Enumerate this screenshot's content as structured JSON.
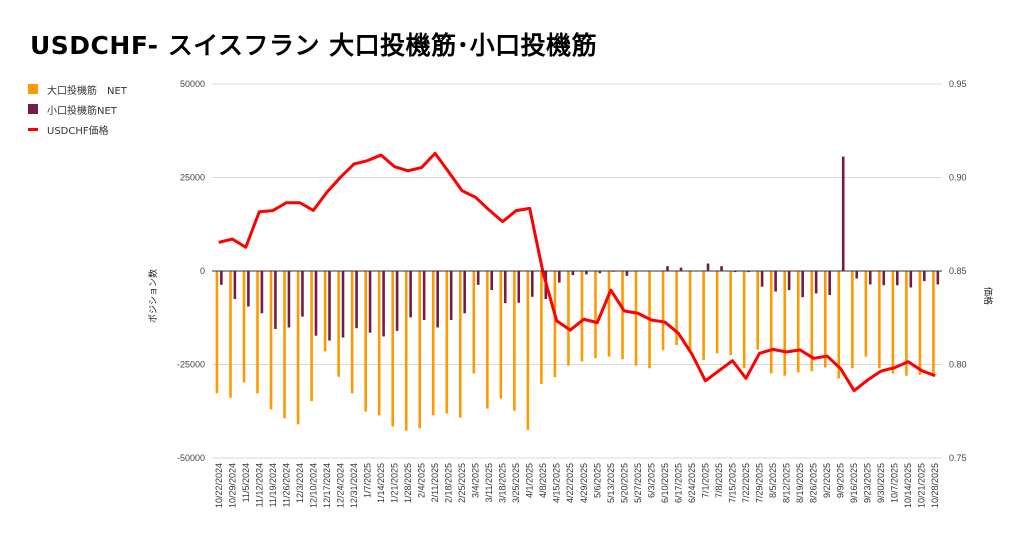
{
  "chart_data": {
    "type": "bar+line",
    "title": "USDCHF- スイスフラン 大口投機筋･小口投機筋",
    "ylabel": "ポジション数",
    "y2label": "価格",
    "ylim": [
      -50000,
      50000
    ],
    "yticks": [
      50000,
      25000,
      0,
      -25000,
      -50000
    ],
    "y2lim": [
      0.75,
      0.95
    ],
    "y2ticks": [
      "0.95",
      "0.90",
      "0.85",
      "0.80",
      "0.75"
    ],
    "grid": true,
    "legend_position": "top-left",
    "categories": [
      "10/22/2024",
      "10/29/2024",
      "11/5/2024",
      "11/12/2024",
      "11/19/2024",
      "11/26/2024",
      "12/3/2024",
      "12/10/2024",
      "12/17/2024",
      "12/24/2024",
      "12/31/2024",
      "1/7/2025",
      "1/14/2025",
      "1/21/2025",
      "1/28/2025",
      "2/4/2025",
      "2/11/2025",
      "2/18/2025",
      "2/25/2025",
      "3/4/2025",
      "3/11/2025",
      "3/18/2025",
      "3/25/2025",
      "4/1/2025",
      "4/8/2025",
      "4/15/2025",
      "4/22/2025",
      "4/29/2025",
      "5/6/2025",
      "5/13/2025",
      "5/20/2025",
      "5/27/2025",
      "6/3/2025",
      "6/10/2025",
      "6/17/2025",
      "6/24/2025",
      "7/1/2025",
      "7/8/2025",
      "7/15/2025",
      "7/22/2025",
      "7/29/2025",
      "8/5/2025",
      "8/12/2025",
      "8/19/2025",
      "8/26/2025",
      "9/2/2025",
      "9/9/2025",
      "9/16/2025",
      "9/23/2025",
      "9/30/2025",
      "10/7/2025",
      "10/14/2025",
      "10/21/2025",
      "10/28/2025"
    ],
    "series": [
      {
        "name": "大口投機筋　NET",
        "type": "bar",
        "axis": "left",
        "color": "#ff9900",
        "values": [
          -32700,
          -33900,
          -29800,
          -32700,
          -37000,
          -39400,
          -41000,
          -34800,
          -21500,
          -28300,
          -32700,
          -37600,
          -38600,
          -41600,
          -42700,
          -42100,
          -38600,
          -38100,
          -39200,
          -27400,
          -36800,
          -34100,
          -37400,
          -42500,
          -30200,
          -28400,
          -25300,
          -24200,
          -23300,
          -22900,
          -23600,
          -25300,
          -26000,
          -21200,
          -19800,
          -21900,
          -23800,
          -22000,
          -22500,
          -26000,
          -21000,
          -27400,
          -28000,
          -27100,
          -26800,
          -25800,
          -28700,
          -26000,
          -22900,
          -26000,
          -27400,
          -28000,
          -27800,
          -27600
        ]
      },
      {
        "name": "小口投機筋NET",
        "type": "bar",
        "axis": "left",
        "color": "#741b47",
        "values": [
          -3700,
          -7500,
          -9500,
          -11300,
          -15500,
          -15100,
          -12200,
          -17300,
          -18600,
          -17800,
          -15300,
          -16500,
          -17500,
          -16000,
          -12400,
          -13100,
          -15100,
          -13100,
          -11300,
          -3700,
          -5100,
          -8600,
          -8500,
          -6900,
          -7500,
          -3100,
          -1100,
          -900,
          -600,
          -200,
          -1300,
          0,
          0,
          1300,
          900,
          0,
          2000,
          1300,
          -300,
          -300,
          -4200,
          -5500,
          -5100,
          -7000,
          -6000,
          -6400,
          30600,
          -2000,
          -3600,
          -3800,
          -3800,
          -4400,
          -2700,
          -3600
        ]
      },
      {
        "name": "USDCHF価格",
        "type": "line",
        "axis": "right",
        "color": "#ff0000",
        "values": [
          0.8653,
          0.8671,
          0.8627,
          0.8817,
          0.8823,
          0.8865,
          0.8865,
          0.8824,
          0.8921,
          0.9001,
          0.9072,
          0.909,
          0.912,
          0.9058,
          0.9036,
          0.9053,
          0.9129,
          0.9031,
          0.8929,
          0.8894,
          0.8826,
          0.8764,
          0.8823,
          0.8835,
          0.8488,
          0.8233,
          0.8184,
          0.8242,
          0.8224,
          0.8398,
          0.8286,
          0.8274,
          0.8238,
          0.8227,
          0.8167,
          0.8056,
          0.7913,
          0.7967,
          0.802,
          0.7926,
          0.806,
          0.8081,
          0.8067,
          0.8078,
          0.8033,
          0.8045,
          0.7978,
          0.786,
          0.7917,
          0.7965,
          0.7983,
          0.8015,
          0.7967,
          0.794
        ]
      }
    ]
  }
}
